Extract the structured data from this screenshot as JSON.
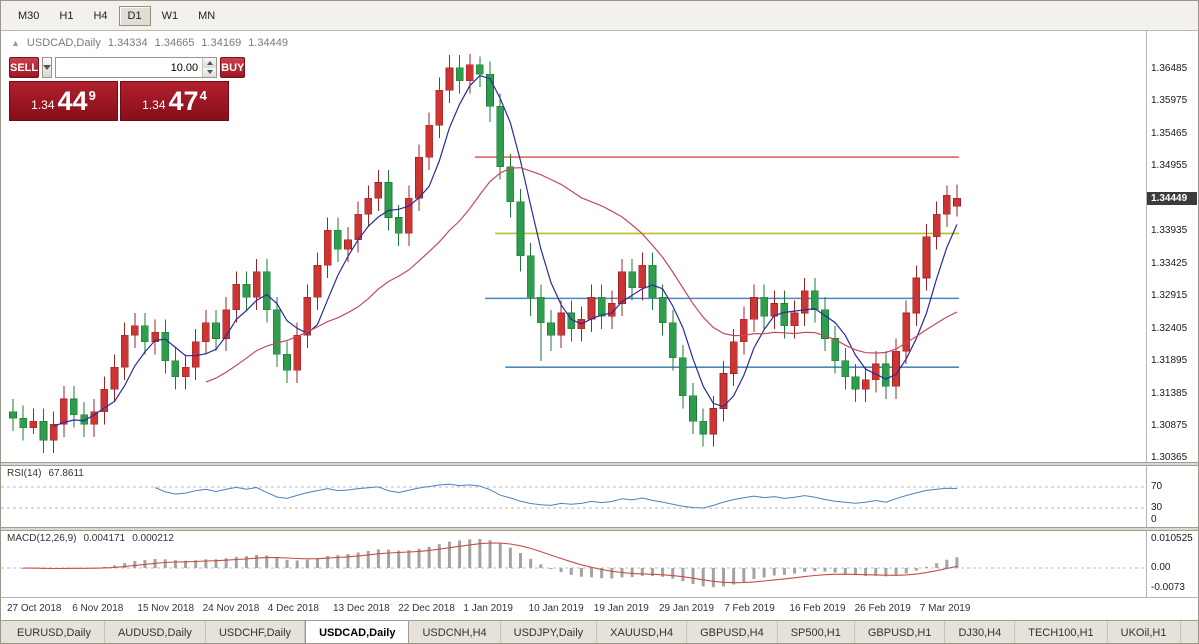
{
  "toolbar": {
    "timeframes": [
      {
        "label": "M30",
        "active": false
      },
      {
        "label": "H1",
        "active": false
      },
      {
        "label": "H4",
        "active": false
      },
      {
        "label": "D1",
        "active": true
      },
      {
        "label": "W1",
        "active": false
      },
      {
        "label": "MN",
        "active": false
      }
    ]
  },
  "chart": {
    "marker": "▲",
    "symbol_label": "USDCAD,Daily",
    "open": "1.34334",
    "high": "1.34665",
    "low": "1.34169",
    "close": "1.34449",
    "current_price": "1.34449"
  },
  "order_panel": {
    "sell_label": "SELL",
    "buy_label": "BUY",
    "volume": "10.00",
    "sell_price": {
      "prefix": "1.34",
      "big": "44",
      "sup": "9"
    },
    "buy_price": {
      "prefix": "1.34",
      "big": "47",
      "sup": "4"
    }
  },
  "rsi": {
    "name": "RSI(14)",
    "value": "67.8611",
    "period": 14,
    "line_color": "#4f81bd",
    "levels": [
      {
        "label": "70",
        "value": 70,
        "dashed": true
      },
      {
        "label": "30",
        "value": 30,
        "dashed": true
      },
      {
        "label": "0",
        "value": 0,
        "dashed": false
      }
    ]
  },
  "macd": {
    "name": "MACD(12,26,9)",
    "value_main": "0.004171",
    "value_signal": "0.000212",
    "fast": 12,
    "slow": 26,
    "signal": 9,
    "hist_color": "#a3a3a3",
    "signal_color": "#c0504d",
    "levels": [
      {
        "label": "0.010525",
        "value": 0.010525,
        "dashed": false
      },
      {
        "label": "0.00",
        "value": 0,
        "dashed": true
      },
      {
        "label": "-0.0073",
        "value": -0.0073,
        "dashed": false
      }
    ]
  },
  "tabs": [
    {
      "label": "EURUSD,Daily",
      "active": false
    },
    {
      "label": "AUDUSD,Daily",
      "active": false
    },
    {
      "label": "USDCHF,Daily",
      "active": false
    },
    {
      "label": "USDCAD,Daily",
      "active": true
    },
    {
      "label": "USDCNH,H4",
      "active": false
    },
    {
      "label": "USDJPY,Daily",
      "active": false
    },
    {
      "label": "XAUUSD,H4",
      "active": false
    },
    {
      "label": "GBPUSD,H4",
      "active": false
    },
    {
      "label": "SP500,H1",
      "active": false
    },
    {
      "label": "GBPUSD,H1",
      "active": false
    },
    {
      "label": "DJ30,H4",
      "active": false
    },
    {
      "label": "TECH100,H1",
      "active": false
    },
    {
      "label": "UKOil,H1",
      "active": false
    }
  ],
  "chart_data": {
    "type": "candlestick",
    "symbol": "USDCAD",
    "timeframe": "Daily",
    "up_color": "#cd3434",
    "down_color": "#2e9e4e",
    "up_stroke": "#9b2424",
    "down_stroke": "#1f7a36",
    "y_range": {
      "top": 1.3708,
      "bottom": 1.3031
    },
    "y_ticks": [
      "1.36485",
      "1.35975",
      "1.35465",
      "1.34955",
      "1.33935",
      "1.33425",
      "1.32915",
      "1.32405",
      "1.31895",
      "1.31385",
      "1.30875",
      "1.30365"
    ],
    "x_labels": [
      "27 Oct 2018",
      "6 Nov 2018",
      "15 Nov 2018",
      "24 Nov 2018",
      "4 Dec 2018",
      "13 Dec 2018",
      "22 Dec 2018",
      "1 Jan 2019",
      "10 Jan 2019",
      "19 Jan 2019",
      "29 Jan 2019",
      "7 Feb 2019",
      "16 Feb 2019",
      "26 Feb 2019",
      "7 Mar 2019"
    ],
    "moving_averages": [
      {
        "period": 5,
        "color": "#2a2aa0"
      },
      {
        "period": 20,
        "color": "#c24b5e"
      }
    ],
    "hlines": [
      {
        "price": 1.351,
        "color": "#e0685c",
        "from_index": 46
      },
      {
        "price": 1.339,
        "color": "#bdbd2a",
        "from_index": 48
      },
      {
        "price": 1.3288,
        "color": "#4f86b8",
        "from_index": 47
      },
      {
        "price": 1.318,
        "color": "#4f86b8",
        "from_index": 49
      }
    ],
    "candles": [
      [
        1.311,
        1.313,
        1.308,
        1.31
      ],
      [
        1.31,
        1.312,
        1.3065,
        1.3085
      ],
      [
        1.3085,
        1.3115,
        1.3075,
        1.3095
      ],
      [
        1.3095,
        1.3115,
        1.3045,
        1.3065
      ],
      [
        1.3065,
        1.311,
        1.3045,
        1.309
      ],
      [
        1.309,
        1.315,
        1.307,
        1.313
      ],
      [
        1.313,
        1.315,
        1.3085,
        1.3105
      ],
      [
        1.3105,
        1.3125,
        1.307,
        1.309
      ],
      [
        1.309,
        1.313,
        1.307,
        1.311
      ],
      [
        1.311,
        1.3165,
        1.309,
        1.3145
      ],
      [
        1.3145,
        1.32,
        1.3125,
        1.318
      ],
      [
        1.318,
        1.325,
        1.316,
        1.323
      ],
      [
        1.323,
        1.3265,
        1.321,
        1.3245
      ],
      [
        1.3245,
        1.3265,
        1.32,
        1.322
      ],
      [
        1.322,
        1.3255,
        1.32,
        1.3235
      ],
      [
        1.3235,
        1.3255,
        1.317,
        1.319
      ],
      [
        1.319,
        1.321,
        1.3145,
        1.3165
      ],
      [
        1.3165,
        1.32,
        1.3145,
        1.318
      ],
      [
        1.318,
        1.324,
        1.316,
        1.322
      ],
      [
        1.322,
        1.327,
        1.32,
        1.325
      ],
      [
        1.325,
        1.327,
        1.3205,
        1.3225
      ],
      [
        1.3225,
        1.329,
        1.3205,
        1.327
      ],
      [
        1.327,
        1.333,
        1.325,
        1.331
      ],
      [
        1.331,
        1.333,
        1.327,
        1.329
      ],
      [
        1.329,
        1.335,
        1.327,
        1.333
      ],
      [
        1.333,
        1.335,
        1.325,
        1.327
      ],
      [
        1.327,
        1.329,
        1.318,
        1.32
      ],
      [
        1.32,
        1.322,
        1.3155,
        1.3175
      ],
      [
        1.3175,
        1.325,
        1.3155,
        1.323
      ],
      [
        1.323,
        1.331,
        1.321,
        1.329
      ],
      [
        1.329,
        1.336,
        1.327,
        1.334
      ],
      [
        1.334,
        1.3415,
        1.332,
        1.3395
      ],
      [
        1.3395,
        1.3415,
        1.3345,
        1.3365
      ],
      [
        1.3365,
        1.34,
        1.3345,
        1.338
      ],
      [
        1.338,
        1.344,
        1.336,
        1.342
      ],
      [
        1.342,
        1.3465,
        1.34,
        1.3445
      ],
      [
        1.3445,
        1.349,
        1.3425,
        1.347
      ],
      [
        1.347,
        1.349,
        1.3395,
        1.3415
      ],
      [
        1.3415,
        1.3435,
        1.337,
        1.339
      ],
      [
        1.339,
        1.3465,
        1.337,
        1.3445
      ],
      [
        1.3445,
        1.353,
        1.3425,
        1.351
      ],
      [
        1.351,
        1.358,
        1.349,
        1.356
      ],
      [
        1.356,
        1.3635,
        1.354,
        1.3615
      ],
      [
        1.3615,
        1.367,
        1.3595,
        1.365
      ],
      [
        1.365,
        1.367,
        1.361,
        1.363
      ],
      [
        1.363,
        1.3672,
        1.361,
        1.3655
      ],
      [
        1.3655,
        1.3668,
        1.362,
        1.364
      ],
      [
        1.364,
        1.366,
        1.3565,
        1.359
      ],
      [
        1.359,
        1.361,
        1.3475,
        1.3495
      ],
      [
        1.3495,
        1.3515,
        1.3415,
        1.344
      ],
      [
        1.344,
        1.346,
        1.333,
        1.3355
      ],
      [
        1.3355,
        1.3375,
        1.326,
        1.329
      ],
      [
        1.329,
        1.331,
        1.319,
        1.325
      ],
      [
        1.325,
        1.327,
        1.3205,
        1.323
      ],
      [
        1.323,
        1.3285,
        1.321,
        1.3265
      ],
      [
        1.3265,
        1.3285,
        1.322,
        1.324
      ],
      [
        1.324,
        1.3275,
        1.322,
        1.3255
      ],
      [
        1.3255,
        1.331,
        1.3235,
        1.329
      ],
      [
        1.329,
        1.331,
        1.324,
        1.326
      ],
      [
        1.326,
        1.33,
        1.324,
        1.328
      ],
      [
        1.328,
        1.335,
        1.326,
        1.333
      ],
      [
        1.333,
        1.335,
        1.3285,
        1.3305
      ],
      [
        1.3305,
        1.336,
        1.3285,
        1.334
      ],
      [
        1.334,
        1.336,
        1.327,
        1.329
      ],
      [
        1.329,
        1.331,
        1.323,
        1.325
      ],
      [
        1.325,
        1.327,
        1.3175,
        1.3195
      ],
      [
        1.3195,
        1.3215,
        1.3115,
        1.3135
      ],
      [
        1.3135,
        1.3155,
        1.3075,
        1.3095
      ],
      [
        1.3095,
        1.3115,
        1.3055,
        1.3075
      ],
      [
        1.3075,
        1.3135,
        1.3055,
        1.3115
      ],
      [
        1.3115,
        1.319,
        1.3095,
        1.317
      ],
      [
        1.317,
        1.324,
        1.315,
        1.322
      ],
      [
        1.322,
        1.3275,
        1.32,
        1.3255
      ],
      [
        1.3255,
        1.331,
        1.3235,
        1.329
      ],
      [
        1.329,
        1.331,
        1.324,
        1.326
      ],
      [
        1.326,
        1.33,
        1.324,
        1.328
      ],
      [
        1.328,
        1.33,
        1.3225,
        1.3245
      ],
      [
        1.3245,
        1.3285,
        1.3225,
        1.3265
      ],
      [
        1.3265,
        1.332,
        1.3245,
        1.33
      ],
      [
        1.33,
        1.332,
        1.325,
        1.327
      ],
      [
        1.327,
        1.329,
        1.3205,
        1.3225
      ],
      [
        1.3225,
        1.3245,
        1.317,
        1.319
      ],
      [
        1.319,
        1.321,
        1.3145,
        1.3165
      ],
      [
        1.3165,
        1.3185,
        1.3125,
        1.3145
      ],
      [
        1.3145,
        1.318,
        1.3125,
        1.316
      ],
      [
        1.316,
        1.3205,
        1.314,
        1.3185
      ],
      [
        1.3185,
        1.3205,
        1.313,
        1.315
      ],
      [
        1.315,
        1.3225,
        1.313,
        1.3205
      ],
      [
        1.3205,
        1.3285,
        1.3185,
        1.3265
      ],
      [
        1.3265,
        1.334,
        1.3245,
        1.332
      ],
      [
        1.332,
        1.3405,
        1.33,
        1.3385
      ],
      [
        1.3385,
        1.344,
        1.3365,
        1.342
      ],
      [
        1.342,
        1.3465,
        1.34,
        1.345
      ],
      [
        1.3433,
        1.3467,
        1.3417,
        1.3445
      ]
    ]
  }
}
